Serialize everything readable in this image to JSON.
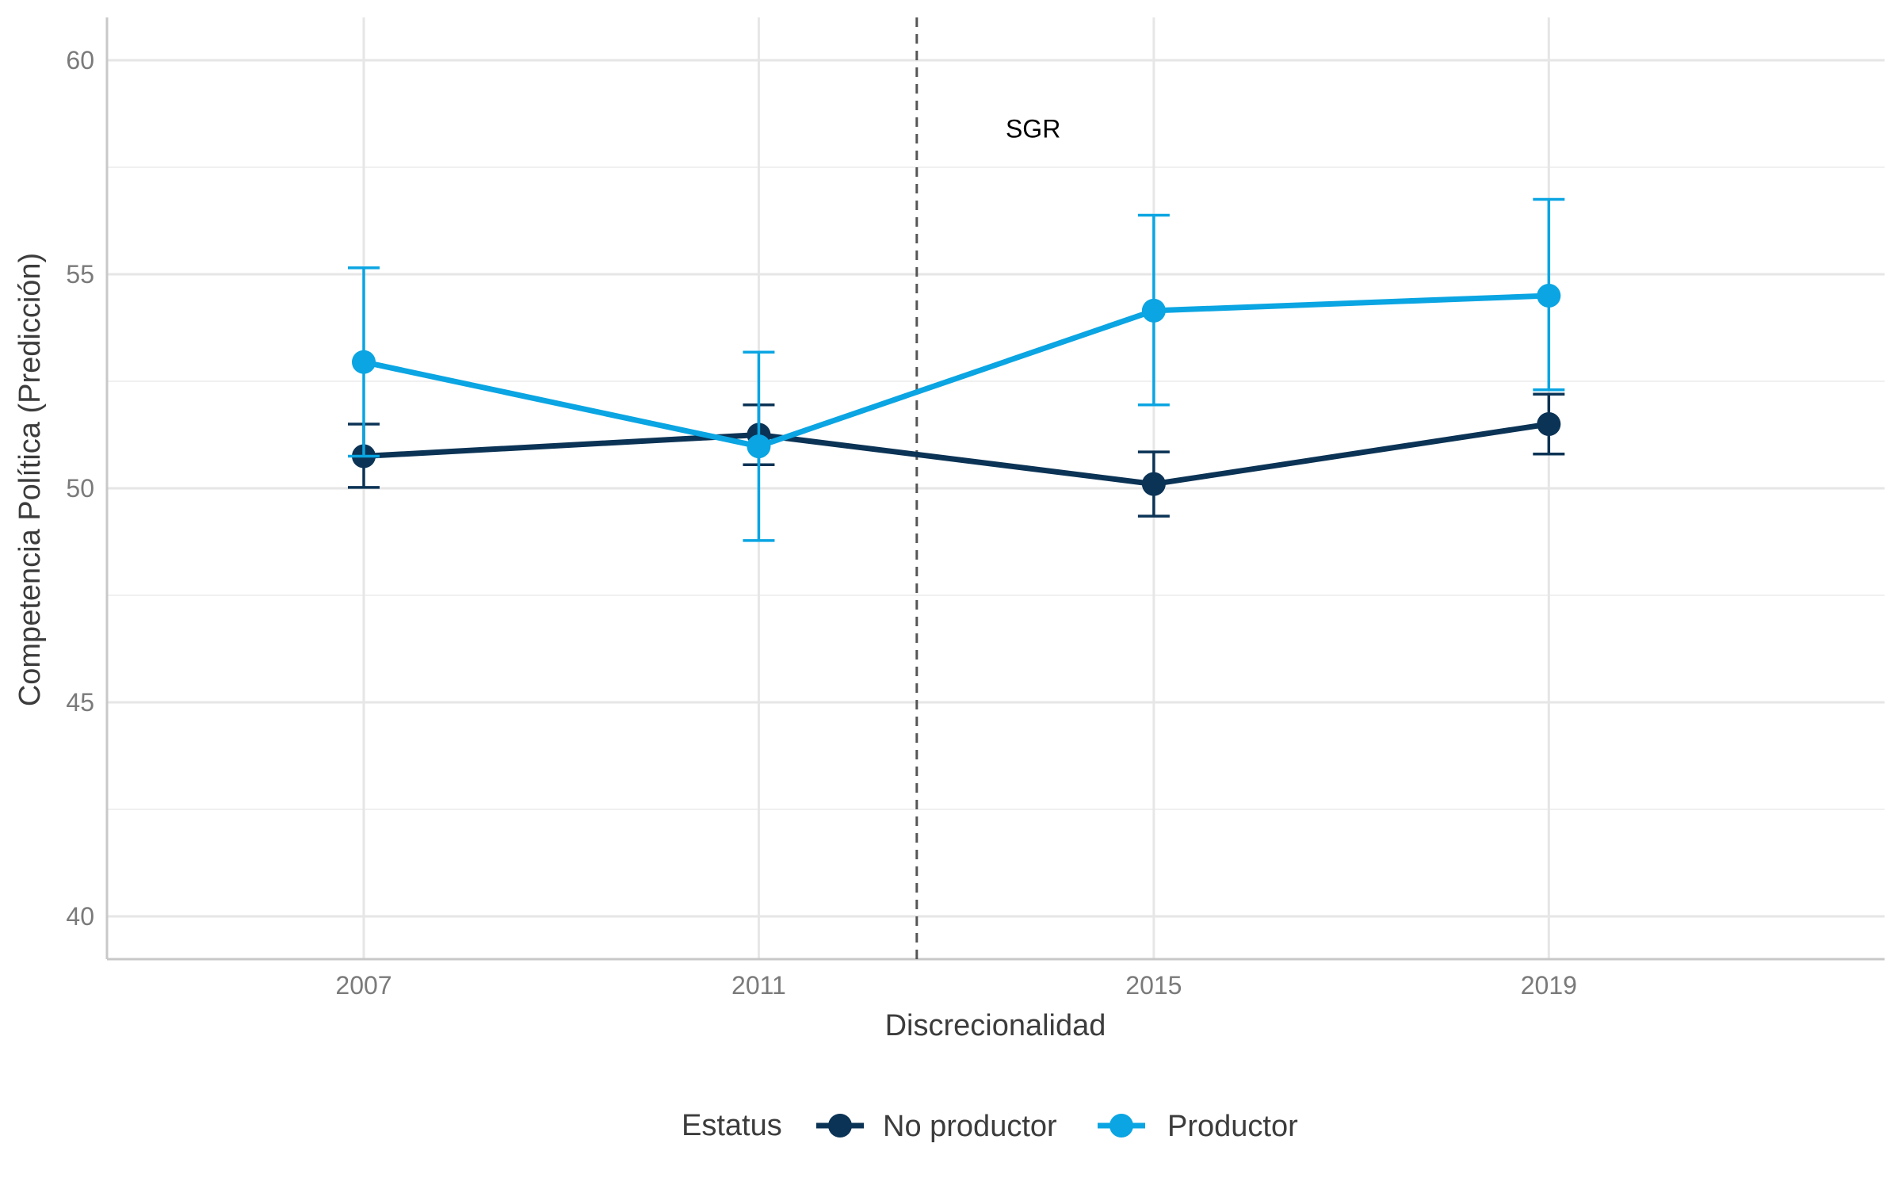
{
  "chart_data": {
    "type": "line",
    "title": "",
    "xlabel": "Discrecionalidad",
    "ylabel": "Competencia Política (Predicción)",
    "x": [
      "2007",
      "2011",
      "2015",
      "2019"
    ],
    "xlim": [
      2004.4,
      2022.4
    ],
    "ylim": [
      39.0,
      61.0
    ],
    "y_ticks": [
      "40",
      "45",
      "50",
      "55",
      "60"
    ],
    "grid": true,
    "vline": {
      "x": 2012.6,
      "style": "dashed",
      "color": "#555555"
    },
    "annotation": {
      "text": "SGR",
      "x": 2013.5,
      "y": 58.4
    },
    "legend": {
      "title": "Estatus",
      "position": "bottom"
    },
    "series": [
      {
        "name": "No productor",
        "color": "#0b3355",
        "values": [
          50.75,
          51.25,
          50.1,
          51.5
        ],
        "lower": [
          50.02,
          50.55,
          49.35,
          50.8
        ],
        "upper": [
          51.5,
          51.95,
          50.85,
          52.2
        ]
      },
      {
        "name": "Productor",
        "color": "#0aa5e2",
        "values": [
          52.95,
          50.98,
          54.15,
          54.5
        ],
        "lower": [
          50.75,
          48.78,
          51.95,
          52.3
        ],
        "upper": [
          55.15,
          53.18,
          56.38,
          56.75
        ]
      }
    ]
  }
}
